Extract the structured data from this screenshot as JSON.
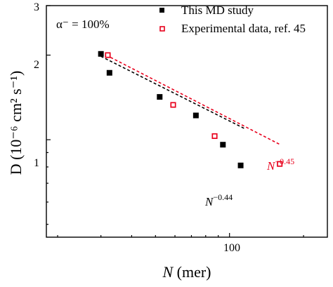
{
  "chart_data": {
    "type": "scatter",
    "xscale": "log",
    "yscale": "log",
    "xlim": [
      18,
      250
    ],
    "ylim": [
      0.45,
      3
    ],
    "x_tick_labels": [
      "100"
    ],
    "y_tick_labels": [
      "1",
      "2",
      "3"
    ],
    "xlabel_italic": "N",
    "xlabel_rest": " (mer)",
    "ylabel": "D (10⁻⁶ cm² s⁻¹)",
    "annotation_topleft": "α⁻ = 100%",
    "series": [
      {
        "name": "This MD study",
        "marker": "filled-square",
        "color": "#000000",
        "points": [
          {
            "x": 30,
            "y": 2.02
          },
          {
            "x": 32.5,
            "y": 1.73
          },
          {
            "x": 52,
            "y": 1.42
          },
          {
            "x": 73,
            "y": 1.22
          },
          {
            "x": 94,
            "y": 0.96
          },
          {
            "x": 111,
            "y": 0.81
          }
        ],
        "fit": {
          "label_base": "N",
          "label_exp": "−0.44",
          "x_from": 30,
          "x_to": 115,
          "y_from": 1.98,
          "exponent": -0.44
        }
      },
      {
        "name": "Experimental data, ref. 45",
        "marker": "open-square",
        "color": "#e8001c",
        "points": [
          {
            "x": 32,
            "y": 2.0
          },
          {
            "x": 59,
            "y": 1.33
          },
          {
            "x": 87,
            "y": 1.03
          },
          {
            "x": 160,
            "y": 0.82
          }
        ],
        "fit": {
          "label_base": "N",
          "label_exp": "−0.45",
          "x_from": 31.5,
          "x_to": 160,
          "y_from": 2.0,
          "exponent": -0.45
        }
      }
    ]
  }
}
